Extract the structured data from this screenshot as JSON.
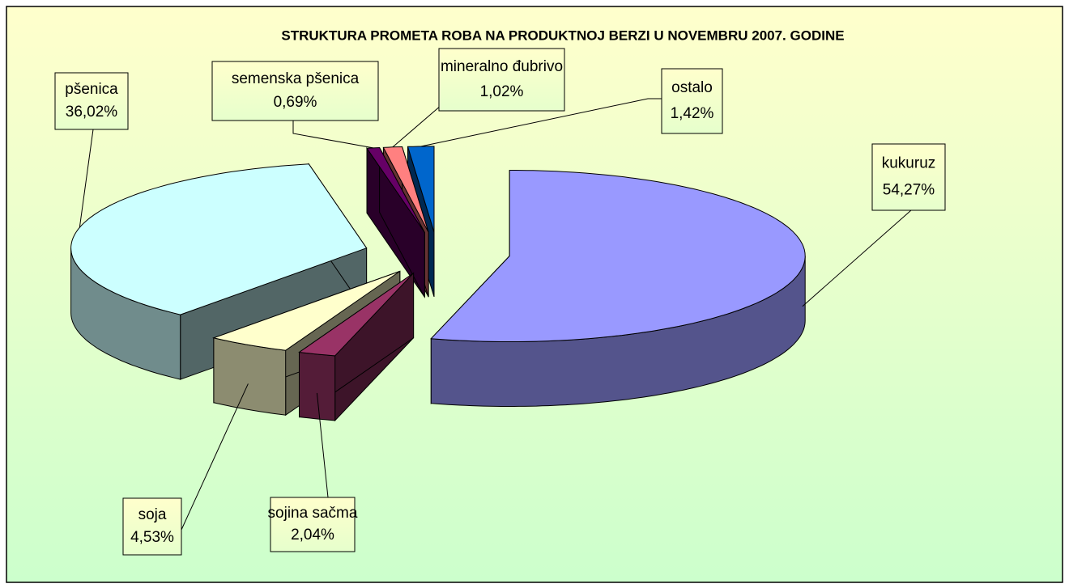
{
  "chart_data": {
    "type": "pie3d",
    "title": "STRUKTURA PROMETA ROBA NA PRODUKTNOJ BERZI U NOVEMBRU 2007. GODINE",
    "categories": [
      "kukuruz",
      "sojina sačma",
      "soja",
      "pšenica",
      "semenska pšenica",
      "mineralno đubrivo",
      "ostalo"
    ],
    "values": [
      54.27,
      2.04,
      4.53,
      36.02,
      0.69,
      1.02,
      1.42
    ],
    "value_labels": [
      "54,27%",
      "2,04%",
      "4,53%",
      "36,02%",
      "0,69%",
      "1,02%",
      "1,42%"
    ],
    "colors": [
      "#9999ff",
      "#993366",
      "#ffffcc",
      "#ccffff",
      "#660066",
      "#ff8080",
      "#0066cc"
    ]
  }
}
